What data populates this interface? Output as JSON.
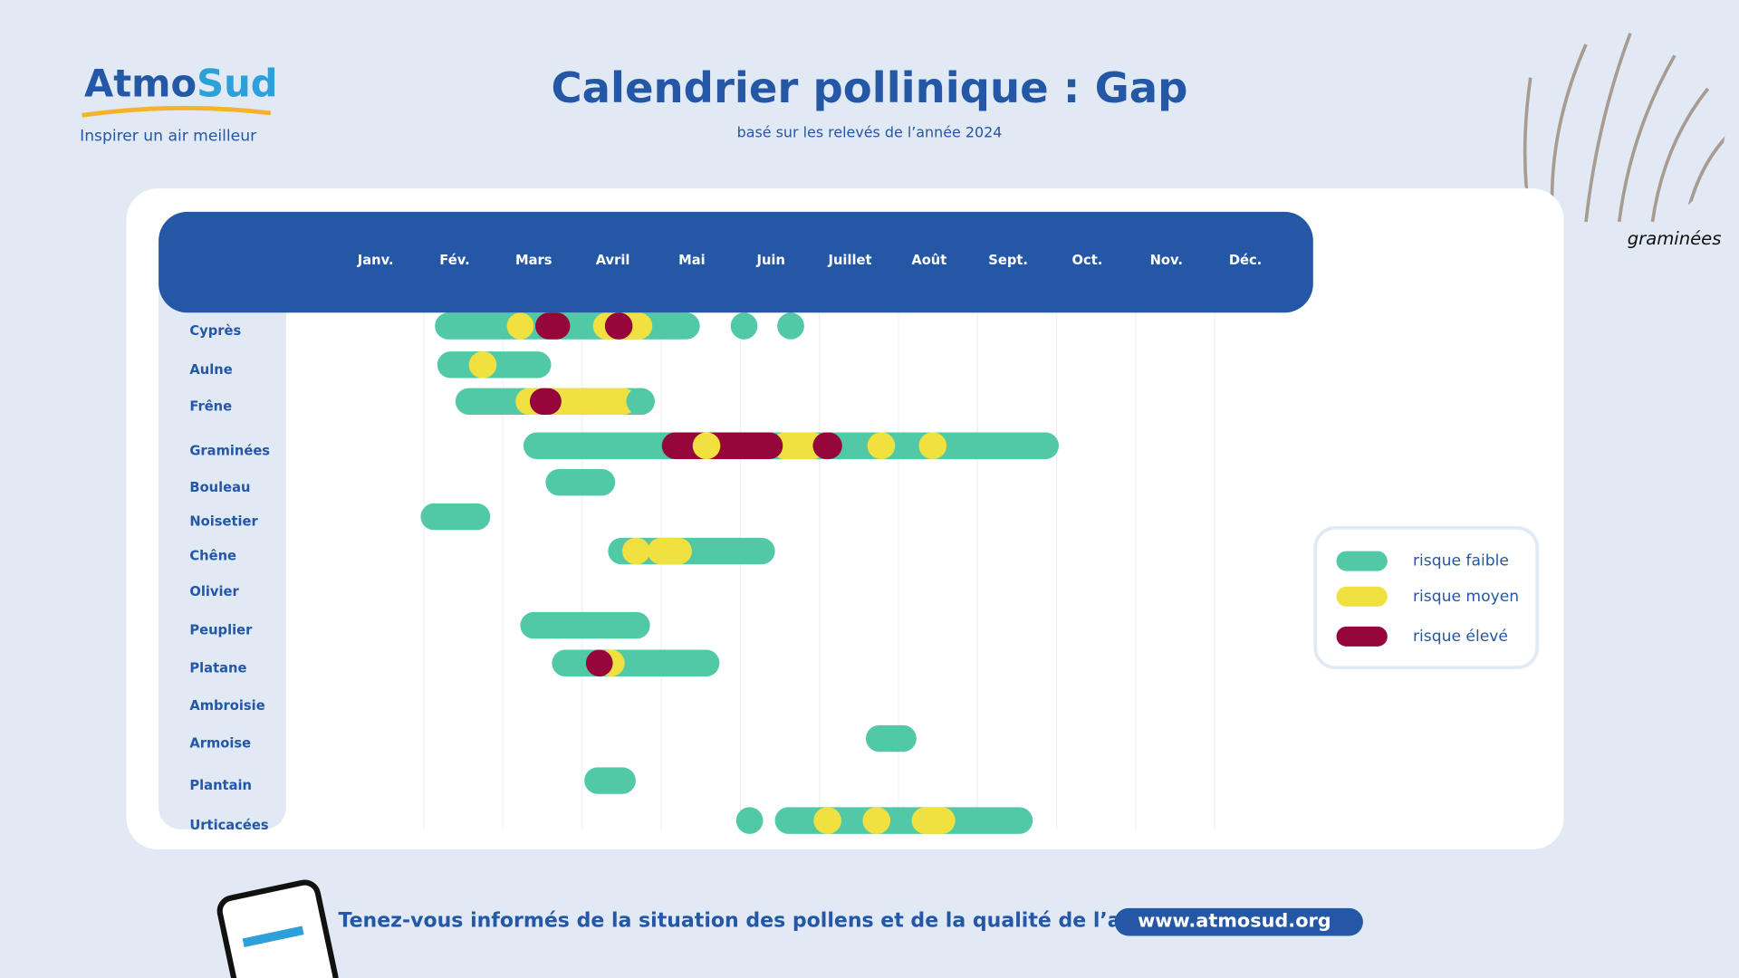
{
  "header": {
    "logo": [
      "Atmo",
      "Sud"
    ],
    "tagline": "Inspirer un air meilleur",
    "title": "Calendrier pollinique : Gap",
    "subtitle": "basé sur les relevés de l’année 2024"
  },
  "image_caption": "graminées",
  "months": [
    "Janv.",
    "Fév.",
    "Mars",
    "Avril",
    "Mai",
    "Juin",
    "Juillet",
    "Août",
    "Sept.",
    "Oct.",
    "Nov.",
    "Déc."
  ],
  "legend": [
    {
      "label": "risque faible",
      "color": "#52c9a6"
    },
    {
      "label": "risque moyen",
      "color": "#f0e140"
    },
    {
      "label": "risque élevé",
      "color": "#95063a"
    }
  ],
  "plants": [
    {
      "name": "Cyprès",
      "segments": [
        {
          "start": 1.25,
          "end": 4.6,
          "color": "#52c9a6"
        },
        {
          "start": 2.16,
          "end": 2.5,
          "color": "#f0e140"
        },
        {
          "start": 2.52,
          "end": 2.96,
          "color": "#95063a"
        },
        {
          "start": 3.25,
          "end": 4.0,
          "color": "#f0e140"
        },
        {
          "start": 3.4,
          "end": 3.75,
          "color": "#95063a"
        },
        {
          "start": 4.99,
          "end": 5.33,
          "color": "#52c9a6"
        },
        {
          "start": 5.58,
          "end": 5.92,
          "color": "#52c9a6"
        }
      ]
    },
    {
      "name": "Aulne",
      "segments": [
        {
          "start": 1.28,
          "end": 2.72,
          "color": "#52c9a6"
        },
        {
          "start": 1.68,
          "end": 2.03,
          "color": "#f0e140"
        }
      ]
    },
    {
      "name": "Frêne",
      "segments": [
        {
          "start": 1.51,
          "end": 4.03,
          "color": "#52c9a6"
        },
        {
          "start": 2.27,
          "end": 3.8,
          "color": "#f0e140"
        },
        {
          "start": 2.45,
          "end": 2.85,
          "color": "#95063a"
        },
        {
          "start": 3.67,
          "end": 4.03,
          "color": "#52c9a6"
        }
      ]
    },
    {
      "name": "Graminées",
      "segments": [
        {
          "start": 2.37,
          "end": 9.14,
          "color": "#52c9a6"
        },
        {
          "start": 5.5,
          "end": 6.2,
          "color": "#f0e140"
        },
        {
          "start": 4.12,
          "end": 5.65,
          "color": "#95063a"
        },
        {
          "start": 4.51,
          "end": 4.86,
          "color": "#f0e140"
        },
        {
          "start": 6.03,
          "end": 6.4,
          "color": "#95063a"
        },
        {
          "start": 6.72,
          "end": 7.07,
          "color": "#f0e140"
        },
        {
          "start": 7.37,
          "end": 7.72,
          "color": "#f0e140"
        }
      ]
    },
    {
      "name": "Bouleau",
      "segments": [
        {
          "start": 2.65,
          "end": 3.53,
          "color": "#52c9a6"
        }
      ]
    },
    {
      "name": "Noisetier",
      "segments": [
        {
          "start": 1.07,
          "end": 1.95,
          "color": "#52c9a6"
        }
      ]
    },
    {
      "name": "Chêne",
      "segments": [
        {
          "start": 3.44,
          "end": 5.55,
          "color": "#52c9a6"
        },
        {
          "start": 3.62,
          "end": 3.97,
          "color": "#f0e140"
        },
        {
          "start": 3.94,
          "end": 4.5,
          "color": "#f0e140"
        }
      ]
    },
    {
      "name": "Olivier",
      "segments": []
    },
    {
      "name": "Peuplier",
      "segments": [
        {
          "start": 2.33,
          "end": 3.97,
          "color": "#52c9a6"
        }
      ]
    },
    {
      "name": "Platane",
      "segments": [
        {
          "start": 2.73,
          "end": 4.85,
          "color": "#52c9a6"
        },
        {
          "start": 3.3,
          "end": 3.65,
          "color": "#f0e140"
        },
        {
          "start": 3.16,
          "end": 3.5,
          "color": "#95063a"
        }
      ]
    },
    {
      "name": "Ambroisie",
      "segments": []
    },
    {
      "name": "Armoise",
      "segments": [
        {
          "start": 6.7,
          "end": 7.34,
          "color": "#52c9a6"
        }
      ]
    },
    {
      "name": "Plantain",
      "segments": [
        {
          "start": 3.14,
          "end": 3.79,
          "color": "#52c9a6"
        }
      ]
    },
    {
      "name": "Urticacées",
      "segments": [
        {
          "start": 5.06,
          "end": 5.4,
          "color": "#52c9a6"
        },
        {
          "start": 5.55,
          "end": 8.81,
          "color": "#52c9a6"
        },
        {
          "start": 6.04,
          "end": 6.39,
          "color": "#f0e140"
        },
        {
          "start": 6.66,
          "end": 7.01,
          "color": "#f0e140"
        },
        {
          "start": 7.28,
          "end": 7.83,
          "color": "#f0e140"
        }
      ]
    }
  ],
  "footer": {
    "text": "Tenez-vous informés de la situation des pollens et de la qualité de l’air sur :",
    "url": "www.atmosud.org"
  }
}
